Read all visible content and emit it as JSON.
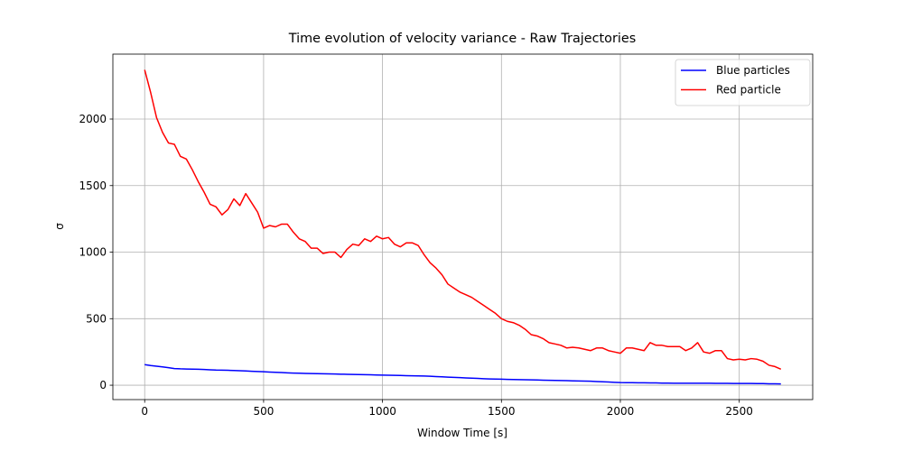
{
  "chart_data": {
    "type": "line",
    "title": "Time evolution of velocity variance - Raw Trajectories",
    "x_label": "Window Time [s]",
    "y_label": "σ",
    "x": [
      0,
      25,
      50,
      75,
      100,
      125,
      150,
      175,
      200,
      225,
      250,
      275,
      300,
      325,
      350,
      375,
      400,
      425,
      450,
      475,
      500,
      525,
      550,
      575,
      600,
      625,
      650,
      675,
      700,
      725,
      750,
      775,
      800,
      825,
      850,
      875,
      900,
      925,
      950,
      975,
      1000,
      1025,
      1050,
      1075,
      1100,
      1125,
      1150,
      1175,
      1200,
      1225,
      1250,
      1275,
      1300,
      1325,
      1350,
      1375,
      1400,
      1425,
      1450,
      1475,
      1500,
      1525,
      1550,
      1575,
      1600,
      1625,
      1650,
      1675,
      1700,
      1725,
      1750,
      1775,
      1800,
      1825,
      1850,
      1875,
      1900,
      1925,
      1950,
      1975,
      2000,
      2025,
      2050,
      2075,
      2100,
      2125,
      2150,
      2175,
      2200,
      2225,
      2250,
      2275,
      2300,
      2325,
      2350,
      2375,
      2400,
      2425,
      2450,
      2475,
      2500,
      2525,
      2550,
      2575,
      2600,
      2625,
      2650,
      2675
    ],
    "series": [
      {
        "name": "Blue particles",
        "color": "#0000ff",
        "values": [
          155,
          148,
          143,
          138,
          132,
          125,
          123,
          122,
          121,
          120,
          118,
          116,
          114,
          113,
          112,
          111,
          109,
          107,
          105,
          103,
          101,
          99,
          97,
          95,
          93,
          91,
          90,
          89,
          88,
          87,
          86,
          85,
          84,
          83,
          82,
          81,
          80,
          79,
          78,
          77,
          76,
          75,
          74,
          73,
          72,
          71,
          70,
          69,
          67,
          65,
          63,
          61,
          59,
          57,
          55,
          53,
          51,
          49,
          47,
          46,
          45,
          44,
          43,
          42,
          41,
          40,
          39,
          38,
          37,
          36,
          35,
          34,
          33,
          32,
          31,
          30,
          28,
          26,
          24,
          22,
          20,
          19,
          19,
          18,
          18,
          17,
          17,
          16,
          16,
          15,
          15,
          15,
          15,
          15,
          15,
          15,
          14,
          14,
          14,
          13,
          13,
          13,
          13,
          12,
          12,
          11,
          11,
          10
        ]
      },
      {
        "name": "Red particle",
        "color": "#ff0000",
        "values": [
          2370,
          2200,
          2010,
          1900,
          1820,
          1810,
          1720,
          1700,
          1620,
          1530,
          1450,
          1360,
          1340,
          1280,
          1320,
          1400,
          1350,
          1440,
          1370,
          1300,
          1180,
          1200,
          1190,
          1210,
          1210,
          1150,
          1100,
          1080,
          1030,
          1030,
          990,
          1000,
          1000,
          960,
          1020,
          1060,
          1050,
          1100,
          1080,
          1120,
          1100,
          1110,
          1060,
          1040,
          1070,
          1070,
          1050,
          980,
          920,
          880,
          830,
          760,
          730,
          700,
          680,
          660,
          630,
          600,
          570,
          540,
          500,
          480,
          470,
          450,
          420,
          380,
          370,
          350,
          320,
          310,
          300,
          280,
          285,
          280,
          270,
          260,
          280,
          280,
          260,
          250,
          240,
          280,
          280,
          270,
          260,
          320,
          300,
          300,
          290,
          290,
          290,
          260,
          280,
          320,
          250,
          240,
          260,
          260,
          200,
          190,
          195,
          190,
          200,
          195,
          180,
          150,
          140,
          120
        ]
      }
    ],
    "xlim": [
      -133.75,
      2808.75
    ],
    "ylim": [
      -108,
      2488
    ],
    "xticks": [
      0,
      500,
      1000,
      1500,
      2000,
      2500
    ],
    "yticks": [
      0,
      500,
      1000,
      1500,
      2000
    ],
    "grid": true,
    "legend": "upper right"
  }
}
